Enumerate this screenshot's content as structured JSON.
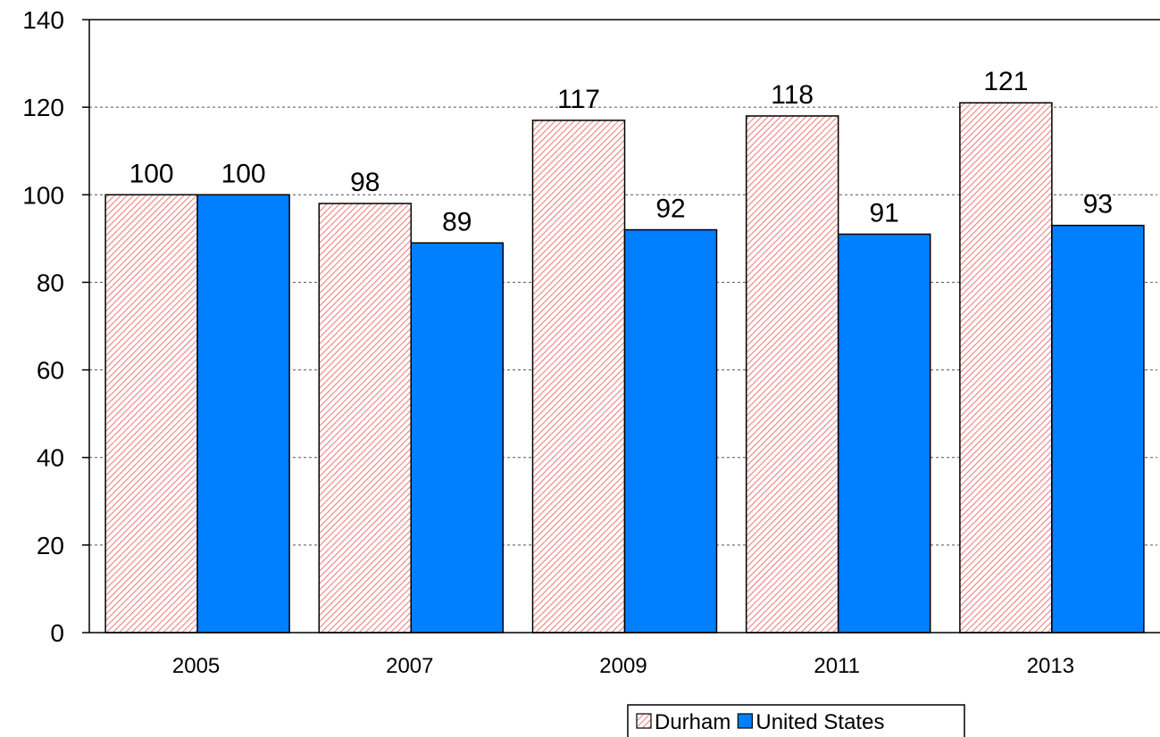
{
  "chart_data": {
    "type": "bar",
    "categories": [
      "2005",
      "2007",
      "2009",
      "2011",
      "2013"
    ],
    "series": [
      {
        "name": "Durham",
        "values": [
          100,
          98,
          117,
          118,
          121
        ],
        "color": "#ff9999",
        "pattern": "hatched"
      },
      {
        "name": "United States",
        "values": [
          100,
          89,
          92,
          91,
          93
        ],
        "color": "#0080ff",
        "pattern": "solid"
      }
    ],
    "title": "",
    "xlabel": "",
    "ylabel": "",
    "ylim": [
      0,
      140
    ],
    "yticks": [
      "0",
      "20",
      "40",
      "60",
      "80",
      "100",
      "120",
      "140"
    ],
    "grid": "horizontal-dashed",
    "legend_position": "bottom-right",
    "data_labels": true
  }
}
